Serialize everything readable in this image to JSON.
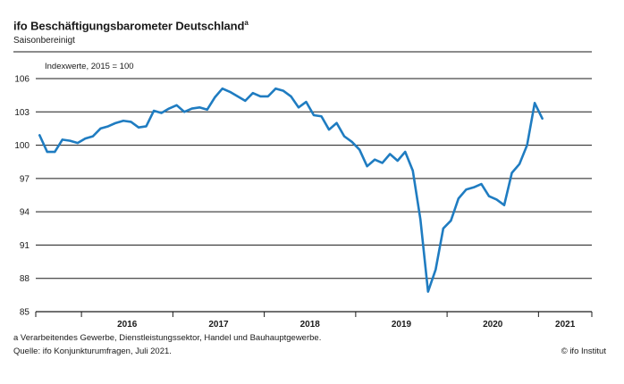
{
  "header": {
    "title": "ifo Beschäftigungsbarometer Deutschland",
    "title_footnote_mark": "a",
    "subtitle": "Saisonbereinigt",
    "unit_label": "Indexwerte, 2015 = 100"
  },
  "footer": {
    "footnote": "a Verarbeitendes Gewerbe, Dienstleistungssektor, Handel und Bauhauptgewerbe.",
    "source": "Quelle: ifo Konjunkturumfragen, Juli 2021.",
    "copyright": "© ifo Institut"
  },
  "colors": {
    "line": "#1f7cc1",
    "grid": "#1a1a1a",
    "text": "#1a1a1a"
  },
  "chart_data": {
    "type": "line",
    "title": "ifo Beschäftigungsbarometer Deutschland",
    "subtitle": "Saisonbereinigt",
    "ylabel": "Indexwerte, 2015 = 100",
    "ylim": [
      85,
      106
    ],
    "yticks": [
      85,
      88,
      91,
      94,
      97,
      100,
      103,
      106
    ],
    "xtick_labels": [
      "2016",
      "2017",
      "2018",
      "2019",
      "2020",
      "2021"
    ],
    "x_start": "2015-07",
    "x_end": "2021-07",
    "grid": "horizontal",
    "series": [
      {
        "values": [
          100.9,
          99.4,
          99.4,
          100.5,
          100.4,
          100.2,
          100.6,
          100.8,
          101.5,
          101.7,
          102.0,
          102.2,
          102.1,
          101.6,
          101.7,
          103.1,
          102.9,
          103.3,
          103.6,
          103.0,
          103.3,
          103.4,
          103.2,
          104.3,
          105.1,
          104.8,
          104.4,
          104.0,
          104.7,
          104.4,
          104.4,
          105.1,
          104.9,
          104.4,
          103.4,
          103.9,
          102.7,
          102.6,
          101.4,
          102.0,
          100.8,
          100.3,
          99.6,
          98.1,
          98.7,
          98.4,
          99.2,
          98.6,
          99.4,
          97.7,
          93.3,
          86.8,
          88.8,
          92.5,
          93.2,
          95.2,
          96.0,
          96.2,
          96.5,
          95.4,
          95.1,
          94.6,
          97.5,
          98.3,
          100.0,
          103.8,
          102.4
        ]
      }
    ]
  }
}
